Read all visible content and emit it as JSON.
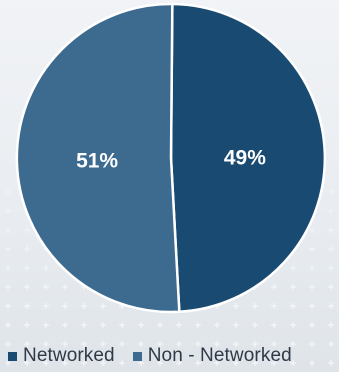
{
  "chart_data": {
    "type": "pie",
    "title": "",
    "slices": [
      {
        "label": "Networked",
        "value": 49,
        "display": "49%",
        "color": "#194a71"
      },
      {
        "label": "Non - Networked",
        "value": 51,
        "display": "51%",
        "color": "#3d6a8f"
      }
    ],
    "legend_position": "bottom-left",
    "start_angle_deg": 0.5,
    "direction": "clockwise",
    "data_label_color": "#ffffff"
  },
  "legend": {
    "items": [
      {
        "label": "Networked",
        "color": "#194a71"
      },
      {
        "label": "Non - Networked",
        "color": "#3d6a8f"
      }
    ]
  }
}
